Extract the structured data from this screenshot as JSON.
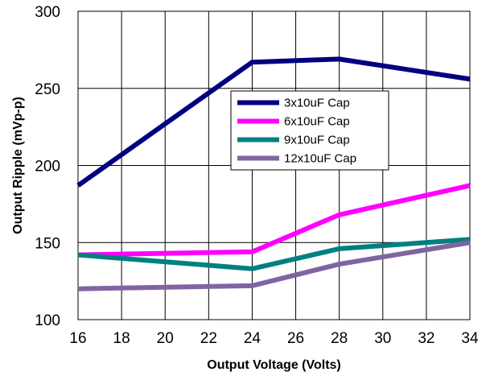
{
  "chart_data": {
    "type": "line",
    "title": "",
    "xlabel": "Output Voltage (Volts)",
    "ylabel": "Output Ripple (mVp-p)",
    "xlim": [
      16,
      34
    ],
    "ylim": [
      100,
      300
    ],
    "xticks": [
      16,
      18,
      20,
      22,
      24,
      26,
      28,
      30,
      32,
      34
    ],
    "yticks": [
      100,
      150,
      200,
      250,
      300
    ],
    "grid": true,
    "legend_position": "upper-center",
    "series": [
      {
        "name": "3x10uF Cap",
        "color": "#000080",
        "x": [
          16,
          24,
          28,
          34
        ],
        "y": [
          187,
          267,
          269,
          256
        ]
      },
      {
        "name": "6x10uF Cap",
        "color": "#FF00FF",
        "x": [
          16,
          24,
          28,
          34
        ],
        "y": [
          142,
          144,
          168,
          187
        ]
      },
      {
        "name": "9x10uF Cap",
        "color": "#008080",
        "x": [
          16,
          24,
          28,
          34
        ],
        "y": [
          142,
          133,
          146,
          152
        ]
      },
      {
        "name": "12x10uF Cap",
        "color": "#8064A2",
        "x": [
          16,
          24,
          28,
          34
        ],
        "y": [
          120,
          122,
          136,
          150
        ]
      }
    ]
  }
}
